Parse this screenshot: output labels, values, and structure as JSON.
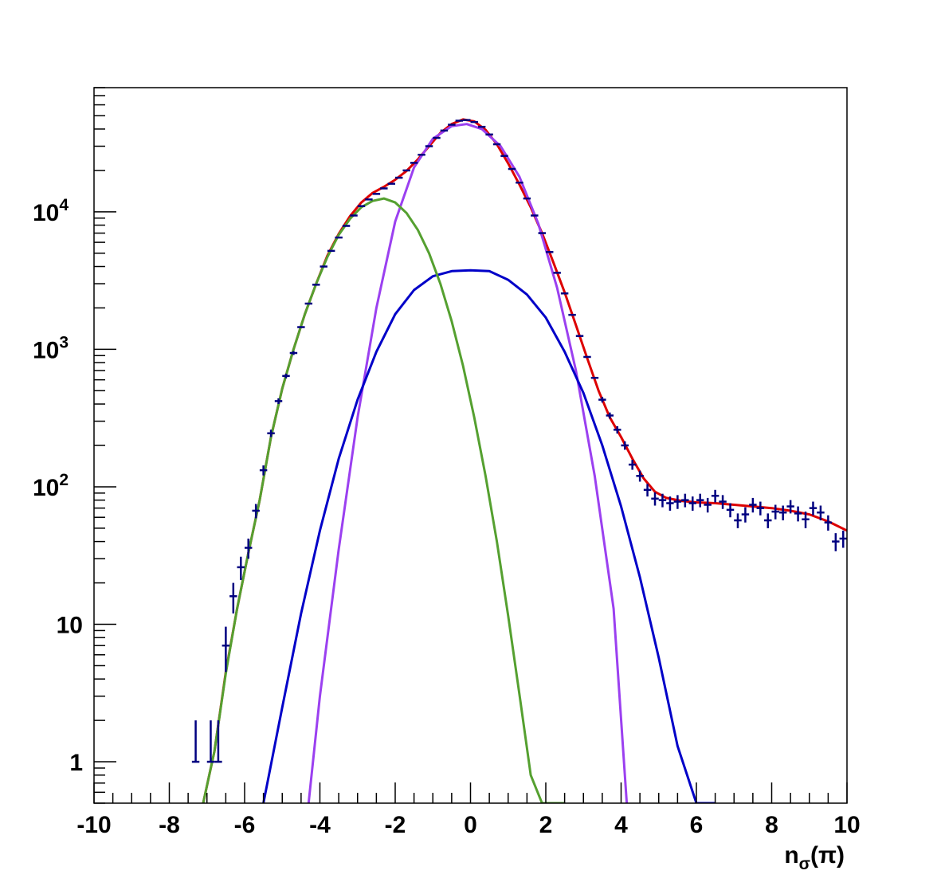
{
  "chart_data": {
    "type": "scatter",
    "title": "",
    "xlabel": {
      "main": "n",
      "sub": "σ",
      "paren": "(π)"
    },
    "ylabel": "",
    "xlim": [
      -10,
      10
    ],
    "ylim": [
      0.5,
      80000
    ],
    "yscale": "log",
    "grid": false,
    "legend": "none",
    "x_ticks": [
      {
        "v": -10,
        "label": "-10"
      },
      {
        "v": -8,
        "label": "-8"
      },
      {
        "v": -6,
        "label": "-6"
      },
      {
        "v": -4,
        "label": "-4"
      },
      {
        "v": -2,
        "label": "-2"
      },
      {
        "v": 0,
        "label": "0"
      },
      {
        "v": 2,
        "label": "2"
      },
      {
        "v": 4,
        "label": "4"
      },
      {
        "v": 6,
        "label": "6"
      },
      {
        "v": 8,
        "label": "8"
      },
      {
        "v": 10,
        "label": "10"
      }
    ],
    "y_ticks": [
      {
        "v": 1,
        "base": "1",
        "exp": ""
      },
      {
        "v": 10,
        "base": "10",
        "exp": ""
      },
      {
        "v": 100,
        "base": "10",
        "exp": "2"
      },
      {
        "v": 1000,
        "base": "10",
        "exp": "3"
      },
      {
        "v": 10000,
        "base": "10",
        "exp": "4"
      }
    ],
    "data_points": {
      "color": "#000080",
      "x_half_width": 0.1,
      "points": [
        [
          -7.3,
          1,
          0,
          1
        ],
        [
          -6.9,
          1,
          0,
          1
        ],
        [
          -6.7,
          1,
          0,
          1
        ],
        [
          -6.5,
          7,
          2.5,
          2.6
        ],
        [
          -6.3,
          16,
          4,
          4
        ],
        [
          -6.1,
          26,
          5,
          5
        ],
        [
          -5.9,
          36,
          6,
          6
        ],
        [
          -5.7,
          67,
          8,
          8
        ],
        [
          -5.5,
          132,
          11,
          11
        ],
        [
          -5.3,
          245,
          15,
          15
        ],
        [
          -5.1,
          420,
          20,
          20
        ],
        [
          -4.9,
          640,
          25,
          25
        ],
        [
          -4.7,
          940,
          30,
          30
        ],
        [
          -4.5,
          1450,
          0,
          0
        ],
        [
          -4.3,
          2150,
          0,
          0
        ],
        [
          -4.1,
          2950,
          0,
          0
        ],
        [
          -3.9,
          4000,
          0,
          0
        ],
        [
          -3.7,
          5200,
          0,
          0
        ],
        [
          -3.5,
          6500,
          0,
          0
        ],
        [
          -3.3,
          7900,
          0,
          0
        ],
        [
          -3.1,
          9400,
          0,
          0
        ],
        [
          -2.9,
          11000,
          0,
          0
        ],
        [
          -2.7,
          12300,
          0,
          0
        ],
        [
          -2.5,
          13500,
          0,
          0
        ],
        [
          -2.3,
          14800,
          0,
          0
        ],
        [
          -2.1,
          16000,
          0,
          0
        ],
        [
          -1.9,
          17700,
          0,
          0
        ],
        [
          -1.7,
          20000,
          0,
          0
        ],
        [
          -1.5,
          22700,
          0,
          0
        ],
        [
          -1.3,
          26000,
          0,
          0
        ],
        [
          -1.1,
          30000,
          0,
          0
        ],
        [
          -0.9,
          34500,
          0,
          0
        ],
        [
          -0.7,
          39000,
          0,
          0
        ],
        [
          -0.5,
          43000,
          0,
          0
        ],
        [
          -0.3,
          46000,
          0,
          0
        ],
        [
          -0.1,
          46500,
          0,
          0
        ],
        [
          0.1,
          45000,
          0,
          0
        ],
        [
          0.3,
          41500,
          0,
          0
        ],
        [
          0.5,
          36500,
          0,
          0
        ],
        [
          0.7,
          31000,
          0,
          0
        ],
        [
          0.9,
          25500,
          0,
          0
        ],
        [
          1.1,
          20500,
          0,
          0
        ],
        [
          1.3,
          16300,
          0,
          0
        ],
        [
          1.5,
          12500,
          0,
          0
        ],
        [
          1.7,
          9400,
          0,
          0
        ],
        [
          1.9,
          7000,
          0,
          0
        ],
        [
          2.1,
          5100,
          0,
          0
        ],
        [
          2.3,
          3600,
          0,
          0
        ],
        [
          2.5,
          2550,
          0,
          0
        ],
        [
          2.7,
          1780,
          0,
          0
        ],
        [
          2.9,
          1250,
          0,
          0
        ],
        [
          3.1,
          880,
          0,
          0
        ],
        [
          3.3,
          620,
          0,
          0
        ],
        [
          3.5,
          430,
          20,
          20
        ],
        [
          3.7,
          330,
          17,
          17
        ],
        [
          3.9,
          260,
          16,
          16
        ],
        [
          4.1,
          200,
          14,
          14
        ],
        [
          4.3,
          145,
          12,
          12
        ],
        [
          4.5,
          120,
          11,
          11
        ],
        [
          4.7,
          95,
          10,
          10
        ],
        [
          4.9,
          82,
          9,
          9
        ],
        [
          5.1,
          80,
          9,
          9
        ],
        [
          5.3,
          76,
          9,
          9
        ],
        [
          5.5,
          78,
          9,
          9
        ],
        [
          5.7,
          80,
          9,
          9
        ],
        [
          5.9,
          76,
          9,
          9
        ],
        [
          6.1,
          80,
          9,
          9
        ],
        [
          6.3,
          74,
          9,
          9
        ],
        [
          6.5,
          86,
          9,
          9
        ],
        [
          6.7,
          78,
          9,
          9
        ],
        [
          6.9,
          68,
          8,
          8
        ],
        [
          7.1,
          57,
          7,
          7
        ],
        [
          7.3,
          63,
          8,
          8
        ],
        [
          7.5,
          74,
          9,
          9
        ],
        [
          7.7,
          70,
          8,
          8
        ],
        [
          7.9,
          57,
          7,
          7
        ],
        [
          8.1,
          66,
          8,
          8
        ],
        [
          8.3,
          65,
          8,
          8
        ],
        [
          8.5,
          72,
          8,
          8
        ],
        [
          8.7,
          64,
          8,
          8
        ],
        [
          8.9,
          58,
          8,
          8
        ],
        [
          9.1,
          70,
          8,
          8
        ],
        [
          9.3,
          65,
          8,
          8
        ],
        [
          9.5,
          55,
          7,
          7
        ],
        [
          9.7,
          40,
          6,
          6
        ],
        [
          9.9,
          42,
          6,
          6
        ]
      ]
    },
    "series": [
      {
        "color": "#dd0000",
        "points": [
          [
            -7.1,
            0.5
          ],
          [
            -6.8,
            1.2
          ],
          [
            -6.5,
            4.5
          ],
          [
            -6.2,
            13
          ],
          [
            -5.9,
            33
          ],
          [
            -5.6,
            80
          ],
          [
            -5.3,
            230
          ],
          [
            -5.0,
            520
          ],
          [
            -4.7,
            1000
          ],
          [
            -4.4,
            1800
          ],
          [
            -4.1,
            3000
          ],
          [
            -3.8,
            4800
          ],
          [
            -3.5,
            6900
          ],
          [
            -3.2,
            9300
          ],
          [
            -2.9,
            11700
          ],
          [
            -2.6,
            13700
          ],
          [
            -2.3,
            15200
          ],
          [
            -2.0,
            17100
          ],
          [
            -1.7,
            19800
          ],
          [
            -1.4,
            24000
          ],
          [
            -1.1,
            30000
          ],
          [
            -0.8,
            37500
          ],
          [
            -0.5,
            43500
          ],
          [
            -0.2,
            47000
          ],
          [
            0.1,
            45500
          ],
          [
            0.4,
            39500
          ],
          [
            0.7,
            31000
          ],
          [
            1.0,
            22500
          ],
          [
            1.3,
            15800
          ],
          [
            1.6,
            10800
          ],
          [
            1.9,
            7000
          ],
          [
            2.2,
            4300
          ],
          [
            2.5,
            2600
          ],
          [
            2.8,
            1500
          ],
          [
            3.1,
            860
          ],
          [
            3.4,
            500
          ],
          [
            3.7,
            320
          ],
          [
            4.0,
            230
          ],
          [
            4.3,
            160
          ],
          [
            4.6,
            115
          ],
          [
            4.9,
            92
          ],
          [
            5.2,
            83
          ],
          [
            5.6,
            79
          ],
          [
            6.0,
            77
          ],
          [
            6.5,
            76
          ],
          [
            7.0,
            74
          ],
          [
            7.5,
            72
          ],
          [
            8.0,
            70
          ],
          [
            8.5,
            67
          ],
          [
            9.0,
            63
          ],
          [
            9.5,
            56
          ],
          [
            10.0,
            48
          ]
        ]
      },
      {
        "color": "#9b40f0",
        "points": [
          [
            -4.3,
            0.5
          ],
          [
            -4.0,
            3
          ],
          [
            -3.5,
            35
          ],
          [
            -3.0,
            320
          ],
          [
            -2.5,
            2000
          ],
          [
            -2.0,
            8500
          ],
          [
            -1.5,
            21000
          ],
          [
            -1.0,
            34000
          ],
          [
            -0.5,
            42000
          ],
          [
            -0.1,
            43500
          ],
          [
            0.3,
            40000
          ],
          [
            0.8,
            30000
          ],
          [
            1.3,
            18000
          ],
          [
            1.8,
            8200
          ],
          [
            2.3,
            2800
          ],
          [
            2.8,
            700
          ],
          [
            3.3,
            120
          ],
          [
            3.8,
            13
          ],
          [
            4.15,
            0.5
          ]
        ]
      },
      {
        "color": "#0000c8",
        "points": [
          [
            -5.5,
            0.5
          ],
          [
            -5.0,
            2.5
          ],
          [
            -4.5,
            12
          ],
          [
            -4.0,
            48
          ],
          [
            -3.5,
            160
          ],
          [
            -3.0,
            430
          ],
          [
            -2.5,
            960
          ],
          [
            -2.0,
            1800
          ],
          [
            -1.5,
            2700
          ],
          [
            -1.0,
            3400
          ],
          [
            -0.5,
            3700
          ],
          [
            0.0,
            3750
          ],
          [
            0.5,
            3700
          ],
          [
            1.0,
            3200
          ],
          [
            1.5,
            2500
          ],
          [
            2.0,
            1700
          ],
          [
            2.5,
            960
          ],
          [
            3.0,
            480
          ],
          [
            3.5,
            200
          ],
          [
            4.0,
            72
          ],
          [
            4.5,
            22
          ],
          [
            5.0,
            5.7
          ],
          [
            5.5,
            1.3
          ],
          [
            6.0,
            0.5
          ],
          [
            6.5,
            0.5
          ]
        ]
      },
      {
        "color": "#55a030",
        "points": [
          [
            -7.1,
            0.5
          ],
          [
            -6.8,
            1.2
          ],
          [
            -6.5,
            4.4
          ],
          [
            -6.2,
            13
          ],
          [
            -5.9,
            33
          ],
          [
            -5.6,
            80
          ],
          [
            -5.3,
            230
          ],
          [
            -5.0,
            520
          ],
          [
            -4.7,
            1000
          ],
          [
            -4.4,
            1800
          ],
          [
            -4.1,
            3000
          ],
          [
            -3.8,
            4700
          ],
          [
            -3.5,
            6800
          ],
          [
            -3.2,
            8900
          ],
          [
            -2.9,
            10800
          ],
          [
            -2.6,
            12000
          ],
          [
            -2.3,
            12500
          ],
          [
            -2.0,
            11700
          ],
          [
            -1.7,
            9800
          ],
          [
            -1.4,
            7400
          ],
          [
            -1.1,
            5000
          ],
          [
            -0.8,
            3000
          ],
          [
            -0.5,
            1600
          ],
          [
            -0.2,
            760
          ],
          [
            0.1,
            320
          ],
          [
            0.4,
            120
          ],
          [
            0.7,
            40
          ],
          [
            1.0,
            11.5
          ],
          [
            1.3,
            3.1
          ],
          [
            1.6,
            0.8
          ],
          [
            1.9,
            0.5
          ],
          [
            2.5,
            0.5
          ]
        ]
      }
    ]
  }
}
